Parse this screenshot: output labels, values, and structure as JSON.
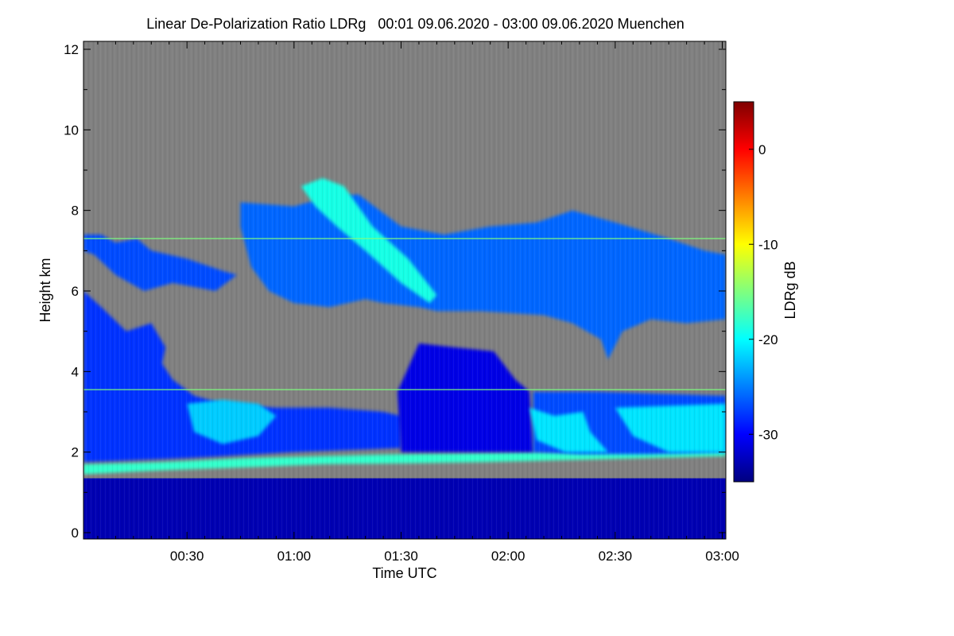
{
  "chart_data": {
    "type": "heatmap",
    "title": "Linear De-Polarization Ratio LDRg   00:01 09.06.2020 - 03:00 09.06.2020 Muenchen",
    "xlabel": "Time UTC",
    "ylabel": "Height km",
    "x_range_minutes": [
      1,
      181
    ],
    "ylim": [
      0,
      12
    ],
    "x_ticks": [
      "00:30",
      "01:00",
      "01:30",
      "02:00",
      "02:30",
      "03:00"
    ],
    "x_tick_minutes": [
      30,
      60,
      90,
      120,
      150,
      180
    ],
    "y_ticks": [
      0,
      2,
      4,
      6,
      8,
      10,
      12
    ],
    "colorbar": {
      "label": "LDRg dB",
      "range": [
        -35,
        5
      ],
      "ticks": [
        0,
        -10,
        -20,
        -30
      ],
      "colormap": [
        "#00007f",
        "#0000ff",
        "#007fff",
        "#00ffff",
        "#7fff7f",
        "#ffff00",
        "#ff7f00",
        "#ff0000",
        "#7f0000"
      ]
    },
    "background_color": "#808080",
    "regions": [
      {
        "name": "low-layer-below-1.4km",
        "ldr_db": -33,
        "heights_km": [
          [
            0,
            1.35
          ],
          [
            0,
            1.35
          ]
        ],
        "times_min": [
          1,
          181
        ]
      },
      {
        "name": "melting-layer-band",
        "ldr_db": -18,
        "times_min": [
          1,
          181
        ],
        "base_km": [
          1.45,
          1.55,
          1.62,
          1.7,
          1.72,
          1.75,
          1.8,
          1.85,
          1.9
        ],
        "top_km": [
          1.7,
          1.75,
          1.85,
          1.9,
          1.95,
          1.98,
          2.02,
          2.05,
          2.1
        ]
      },
      {
        "name": "lower-cloud-left",
        "ldr_db": -28,
        "polygon_time_height": [
          [
            1,
            1.75
          ],
          [
            1,
            6.0
          ],
          [
            6,
            5.6
          ],
          [
            13,
            5.0
          ],
          [
            20,
            5.2
          ],
          [
            24,
            4.6
          ],
          [
            23,
            4.2
          ],
          [
            26,
            3.8
          ],
          [
            32,
            3.4
          ],
          [
            40,
            3.2
          ],
          [
            55,
            3.1
          ],
          [
            70,
            3.1
          ],
          [
            85,
            3.0
          ],
          [
            90,
            2.9
          ],
          [
            90,
            2.1
          ],
          [
            60,
            2.0
          ],
          [
            30,
            1.85
          ],
          [
            1,
            1.75
          ]
        ]
      },
      {
        "name": "lower-cloud-light",
        "ldr_db": -22,
        "polygon_time_height": [
          [
            30,
            3.2
          ],
          [
            40,
            3.3
          ],
          [
            50,
            3.2
          ],
          [
            55,
            2.9
          ],
          [
            50,
            2.4
          ],
          [
            40,
            2.2
          ],
          [
            32,
            2.5
          ],
          [
            30,
            3.2
          ]
        ]
      },
      {
        "name": "deep-column",
        "ldr_db": -31,
        "polygon_time_height": [
          [
            90,
            2.0
          ],
          [
            89,
            3.5
          ],
          [
            95,
            4.7
          ],
          [
            105,
            4.6
          ],
          [
            116,
            4.5
          ],
          [
            122,
            3.8
          ],
          [
            126,
            3.5
          ],
          [
            127,
            2.0
          ]
        ]
      },
      {
        "name": "lower-cloud-right",
        "ldr_db": -27,
        "polygon_time_height": [
          [
            127,
            2.0
          ],
          [
            127,
            3.5
          ],
          [
            145,
            3.5
          ],
          [
            180,
            3.4
          ],
          [
            181,
            3.4
          ],
          [
            181,
            2.0
          ],
          [
            160,
            1.95
          ],
          [
            140,
            1.95
          ]
        ]
      },
      {
        "name": "lower-cloud-right-light-1",
        "ldr_db": -21,
        "polygon_time_height": [
          [
            126,
            3.1
          ],
          [
            133,
            2.9
          ],
          [
            141,
            3.0
          ],
          [
            143,
            2.5
          ],
          [
            148,
            2.0
          ],
          [
            136,
            2.0
          ],
          [
            128,
            2.3
          ]
        ]
      },
      {
        "name": "lower-cloud-right-light-2",
        "ldr_db": -21,
        "polygon_time_height": [
          [
            150,
            3.1
          ],
          [
            181,
            3.2
          ],
          [
            181,
            2.0
          ],
          [
            165,
            2.0
          ],
          [
            155,
            2.4
          ]
        ]
      },
      {
        "name": "upper-cloud-left-patches",
        "ldr_db": -27,
        "polygon_time_height": [
          [
            1,
            7.4
          ],
          [
            6,
            7.4
          ],
          [
            10,
            7.2
          ],
          [
            16,
            7.3
          ],
          [
            20,
            7.0
          ],
          [
            30,
            6.8
          ],
          [
            40,
            6.5
          ],
          [
            44,
            6.4
          ],
          [
            38,
            6.0
          ],
          [
            26,
            6.2
          ],
          [
            18,
            6.0
          ],
          [
            10,
            6.4
          ],
          [
            4,
            6.9
          ],
          [
            1,
            7.0
          ]
        ]
      },
      {
        "name": "upper-cloud-main",
        "ldr_db": -26,
        "polygon_time_height": [
          [
            45,
            8.2
          ],
          [
            60,
            8.1
          ],
          [
            68,
            8.3
          ],
          [
            78,
            8.4
          ],
          [
            90,
            7.6
          ],
          [
            102,
            7.4
          ],
          [
            115,
            7.6
          ],
          [
            128,
            7.7
          ],
          [
            138,
            8.0
          ],
          [
            150,
            7.7
          ],
          [
            165,
            7.3
          ],
          [
            175,
            7.0
          ],
          [
            181,
            6.9
          ],
          [
            181,
            5.3
          ],
          [
            170,
            5.2
          ],
          [
            160,
            5.3
          ],
          [
            152,
            5.0
          ],
          [
            148,
            4.3
          ],
          [
            146,
            4.8
          ],
          [
            138,
            5.2
          ],
          [
            130,
            5.4
          ],
          [
            112,
            5.5
          ],
          [
            100,
            5.5
          ],
          [
            95,
            5.6
          ],
          [
            85,
            5.7
          ],
          [
            80,
            5.8
          ],
          [
            70,
            5.6
          ],
          [
            60,
            5.7
          ],
          [
            53,
            6.0
          ],
          [
            48,
            6.6
          ],
          [
            45,
            7.6
          ]
        ]
      },
      {
        "name": "upper-cloud-bright-streak",
        "ldr_db": -19,
        "polygon_time_height": [
          [
            62,
            8.6
          ],
          [
            68,
            8.8
          ],
          [
            74,
            8.6
          ],
          [
            82,
            7.6
          ],
          [
            92,
            6.8
          ],
          [
            100,
            5.9
          ],
          [
            98,
            5.7
          ],
          [
            90,
            6.2
          ],
          [
            80,
            7.0
          ],
          [
            72,
            7.6
          ],
          [
            66,
            8.1
          ]
        ]
      }
    ],
    "horizontal_artifact_lines_km": [
      7.3,
      3.55
    ]
  }
}
